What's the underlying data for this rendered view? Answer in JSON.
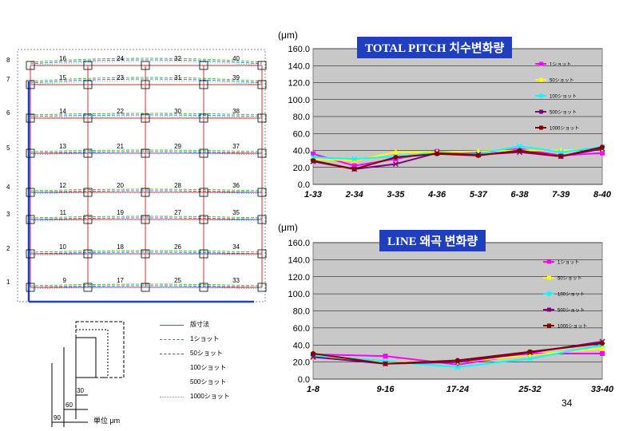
{
  "unit_label": "(μm)",
  "page_number": "34",
  "left_legend": {
    "items": [
      {
        "label": "版寸法",
        "color": "#d03030",
        "style": "solid"
      },
      {
        "label": "1ショット",
        "color": "#22aa22",
        "style": "dashed"
      },
      {
        "label": "50ショット",
        "color": "#3050c0",
        "style": "dashed"
      },
      {
        "label": "100ショット",
        "color": "",
        "style": "none"
      },
      {
        "label": "500ショット",
        "color": "",
        "style": "none"
      },
      {
        "label": "1000ショット",
        "color": "#20c0e0",
        "style": "dotted"
      }
    ]
  },
  "scale_diagram": {
    "labels": [
      "30",
      "60",
      "90"
    ],
    "unit": "単位 μm"
  },
  "grid_diagram": {
    "row_labels": [
      "8",
      "7",
      "6",
      "5",
      "4",
      "3",
      "2",
      "1"
    ],
    "point_labels": [
      [
        "16",
        "24",
        "32",
        "40"
      ],
      [
        "15",
        "23",
        "31",
        "39"
      ],
      [
        "14",
        "22",
        "30",
        "38"
      ],
      [
        "13",
        "21",
        "29",
        "37"
      ],
      [
        "12",
        "20",
        "28",
        "36"
      ],
      [
        "11",
        "19",
        "27",
        "35"
      ],
      [
        "10",
        "18",
        "26",
        "34"
      ],
      [
        "9",
        "17",
        "25",
        "33"
      ]
    ]
  },
  "chart_data": [
    {
      "type": "line",
      "title": "TOTAL PITCH 치수변화량",
      "ylabel": "(μm)",
      "ylim": [
        0,
        160
      ],
      "yticks": [
        "0.0",
        "20.0",
        "40.0",
        "60.0",
        "80.0",
        "100.0",
        "120.0",
        "140.0",
        "160.0"
      ],
      "categories": [
        "1-33",
        "2-34",
        "3-35",
        "4-36",
        "5-37",
        "6-38",
        "7-39",
        "8-40"
      ],
      "grid": true,
      "legend_position": "right",
      "series": [
        {
          "name": "1ショット",
          "color": "#ff00ff",
          "marker": "square",
          "values": [
            36,
            22,
            30,
            39,
            37,
            42,
            34,
            37
          ]
        },
        {
          "name": "50ショット",
          "color": "#ffff00",
          "marker": "triangle",
          "values": [
            30,
            28,
            38,
            38,
            39,
            40,
            40,
            42
          ]
        },
        {
          "name": "100ショット",
          "color": "#00ffff",
          "marker": "x",
          "values": [
            32,
            30,
            33,
            37,
            36,
            45,
            38,
            44
          ]
        },
        {
          "name": "500ショット",
          "color": "#800080",
          "marker": "star",
          "values": [
            27,
            18,
            24,
            37,
            35,
            38,
            33,
            42
          ]
        },
        {
          "name": "1000ショット",
          "color": "#800000",
          "marker": "circle",
          "values": [
            28,
            18,
            32,
            36,
            34,
            40,
            33,
            44
          ]
        }
      ]
    },
    {
      "type": "line",
      "title": "LINE 왜곡 변화량",
      "ylabel": "(μm)",
      "ylim": [
        0,
        160
      ],
      "yticks": [
        "0.0",
        "20.0",
        "40.0",
        "60.0",
        "80.0",
        "100.0",
        "120.0",
        "140.0",
        "160.0"
      ],
      "categories": [
        "1-8",
        "9-16",
        "17-24",
        "25-32",
        "33-40"
      ],
      "grid": true,
      "legend_position": "right",
      "series": [
        {
          "name": "1ショット",
          "color": "#ff00ff",
          "marker": "square",
          "values": [
            29,
            27,
            17,
            30,
            30
          ]
        },
        {
          "name": "50ショット",
          "color": "#ffff00",
          "marker": "triangle",
          "values": [
            27,
            20,
            20,
            28,
            36
          ]
        },
        {
          "name": "100ショット",
          "color": "#00ffff",
          "marker": "x",
          "values": [
            28,
            21,
            14,
            24,
            40
          ]
        },
        {
          "name": "500ショット",
          "color": "#800080",
          "marker": "star",
          "values": [
            26,
            18,
            20,
            31,
            44
          ]
        },
        {
          "name": "1000ショット",
          "color": "#800000",
          "marker": "circle",
          "values": [
            30,
            18,
            22,
            32,
            42
          ]
        }
      ]
    }
  ]
}
